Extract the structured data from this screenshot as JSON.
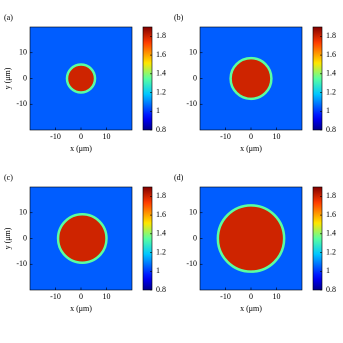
{
  "chart_data": [
    {
      "type": "heatmap",
      "label": "(a)",
      "xlabel": "x (μm)",
      "ylabel": "y (μm)",
      "xlim": [
        -20,
        20
      ],
      "ylim": [
        -20,
        20
      ],
      "xticks": [
        -10,
        0,
        10
      ],
      "yticks": [
        -10,
        0,
        10
      ],
      "clim": [
        0.8,
        1.9
      ],
      "cticks": [
        0.8,
        1,
        1.2,
        1.4,
        1.6,
        1.8
      ],
      "background": 1.05,
      "disk": {
        "center": [
          0,
          0
        ],
        "radius": 5.5,
        "value": 1.8
      }
    },
    {
      "type": "heatmap",
      "label": "(b)",
      "xlabel": "x (μm)",
      "xlim": [
        -20,
        20
      ],
      "ylim": [
        -20,
        20
      ],
      "xticks": [
        -10,
        0,
        10
      ],
      "yticks": [
        -10,
        0,
        10
      ],
      "clim": [
        0.8,
        1.9
      ],
      "cticks": [
        0.8,
        1,
        1.2,
        1.4,
        1.6,
        1.8
      ],
      "background": 1.05,
      "disk": {
        "center": [
          0,
          0
        ],
        "radius": 8,
        "value": 1.8
      }
    },
    {
      "type": "heatmap",
      "label": "(c)",
      "xlabel": "x (μm)",
      "ylabel": "y (μm)",
      "xlim": [
        -20,
        20
      ],
      "ylim": [
        -20,
        20
      ],
      "xticks": [
        -10,
        0,
        10
      ],
      "yticks": [
        -10,
        0,
        10
      ],
      "clim": [
        0.8,
        1.9
      ],
      "cticks": [
        0.8,
        1,
        1.2,
        1.4,
        1.6,
        1.8
      ],
      "background": 1.05,
      "disk": {
        "center": [
          0.5,
          0
        ],
        "radius": 9.5,
        "value": 1.8
      }
    },
    {
      "type": "heatmap",
      "label": "(d)",
      "xlabel": "x (μm)",
      "xlim": [
        -20,
        20
      ],
      "ylim": [
        -20,
        20
      ],
      "xticks": [
        -10,
        0,
        10
      ],
      "yticks": [
        -10,
        0,
        10
      ],
      "clim": [
        0.8,
        1.9
      ],
      "cticks": [
        0.8,
        1,
        1.2,
        1.4,
        1.6,
        1.8
      ],
      "background": 1.05,
      "disk": {
        "center": [
          0,
          0
        ],
        "radius": 13,
        "value": 1.8
      }
    }
  ]
}
